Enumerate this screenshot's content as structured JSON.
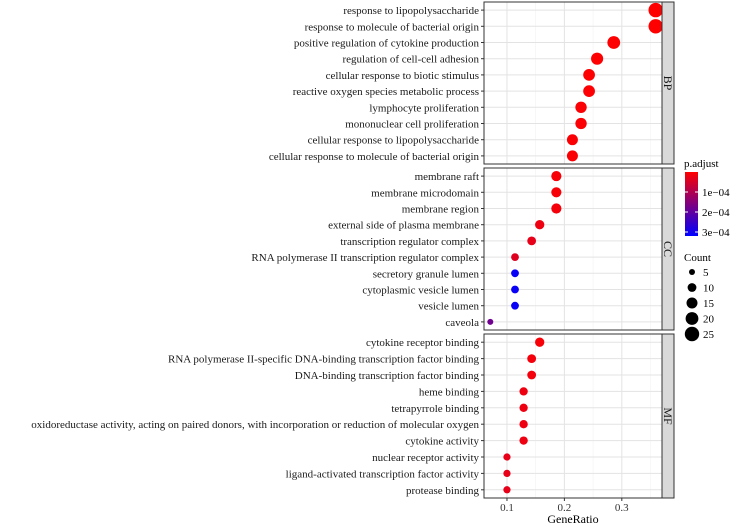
{
  "chart_data": {
    "type": "scatter",
    "xlabel": "GeneRatio",
    "xlim": [
      0.06,
      0.37
    ],
    "xticks": [
      0.1,
      0.2,
      0.3
    ],
    "xtick_labels": [
      "0.1",
      "0.2",
      "0.3"
    ],
    "color_metric": "p.adjust",
    "size_metric": "Count",
    "color_range": [
      1e-08,
      0.00032
    ],
    "color_low": "#ff0000",
    "color_high": "#0000ff",
    "color_ticks": [
      0.0001,
      0.0002,
      0.0003
    ],
    "color_tick_labels": [
      "1e−04",
      "2e−04",
      "3e−04"
    ],
    "size_ticks": [
      5,
      10,
      15,
      20,
      25
    ],
    "size_tick_labels": [
      "5",
      "10",
      "15",
      "20",
      "25"
    ],
    "panels": [
      {
        "name": "BP",
        "terms": [
          {
            "label": "response to lipopolysaccharide",
            "gene_ratio": 0.359,
            "count": 25,
            "p_adjust": 1e-07
          },
          {
            "label": "response to molecule of bacterial origin",
            "gene_ratio": 0.359,
            "count": 25,
            "p_adjust": 1e-07
          },
          {
            "label": "positive regulation of cytokine production",
            "gene_ratio": 0.286,
            "count": 20,
            "p_adjust": 2e-06
          },
          {
            "label": "regulation of cell-cell adhesion",
            "gene_ratio": 0.257,
            "count": 18,
            "p_adjust": 3e-06
          },
          {
            "label": "cellular response to biotic stimulus",
            "gene_ratio": 0.243,
            "count": 17,
            "p_adjust": 3e-06
          },
          {
            "label": "reactive oxygen species metabolic process",
            "gene_ratio": 0.243,
            "count": 17,
            "p_adjust": 4e-06
          },
          {
            "label": "lymphocyte proliferation",
            "gene_ratio": 0.229,
            "count": 16,
            "p_adjust": 5e-06
          },
          {
            "label": "mononuclear cell proliferation",
            "gene_ratio": 0.229,
            "count": 16,
            "p_adjust": 5e-06
          },
          {
            "label": "cellular response to lipopolysaccharide",
            "gene_ratio": 0.214,
            "count": 15,
            "p_adjust": 6e-06
          },
          {
            "label": "cellular response to molecule of bacterial origin",
            "gene_ratio": 0.214,
            "count": 15,
            "p_adjust": 6e-06
          }
        ]
      },
      {
        "name": "CC",
        "terms": [
          {
            "label": "membrane raft",
            "gene_ratio": 0.186,
            "count": 13,
            "p_adjust": 1e-05
          },
          {
            "label": "membrane microdomain",
            "gene_ratio": 0.186,
            "count": 13,
            "p_adjust": 1e-05
          },
          {
            "label": "membrane region",
            "gene_ratio": 0.186,
            "count": 13,
            "p_adjust": 1.2e-05
          },
          {
            "label": "external side of plasma membrane",
            "gene_ratio": 0.157,
            "count": 11,
            "p_adjust": 2e-05
          },
          {
            "label": "transcription regulator complex",
            "gene_ratio": 0.143,
            "count": 10,
            "p_adjust": 3e-05
          },
          {
            "label": "RNA polymerase II transcription regulator complex",
            "gene_ratio": 0.114,
            "count": 8,
            "p_adjust": 4e-05
          },
          {
            "label": "secretory granule lumen",
            "gene_ratio": 0.114,
            "count": 8,
            "p_adjust": 0.00031
          },
          {
            "label": "cytoplasmic vesicle lumen",
            "gene_ratio": 0.114,
            "count": 8,
            "p_adjust": 0.00031
          },
          {
            "label": "vesicle lumen",
            "gene_ratio": 0.114,
            "count": 8,
            "p_adjust": 0.00031
          },
          {
            "label": "caveola",
            "gene_ratio": 0.071,
            "count": 5,
            "p_adjust": 0.00018
          }
        ]
      },
      {
        "name": "MF",
        "terms": [
          {
            "label": "cytokine receptor binding",
            "gene_ratio": 0.157,
            "count": 11,
            "p_adjust": 1e-05
          },
          {
            "label": "RNA polymerase II-specific DNA-binding transcription factor binding",
            "gene_ratio": 0.143,
            "count": 10,
            "p_adjust": 1.2e-05
          },
          {
            "label": "DNA-binding transcription factor binding",
            "gene_ratio": 0.143,
            "count": 10,
            "p_adjust": 1.5e-05
          },
          {
            "label": "heme binding",
            "gene_ratio": 0.129,
            "count": 9,
            "p_adjust": 2e-05
          },
          {
            "label": "tetrapyrrole binding",
            "gene_ratio": 0.129,
            "count": 9,
            "p_adjust": 2e-05
          },
          {
            "label": "oxidoreductase activity, acting on paired donors, with incorporation or reduction of molecular oxygen",
            "gene_ratio": 0.129,
            "count": 9,
            "p_adjust": 2e-05
          },
          {
            "label": "cytokine activity",
            "gene_ratio": 0.129,
            "count": 9,
            "p_adjust": 2e-05
          },
          {
            "label": "nuclear receptor activity",
            "gene_ratio": 0.1,
            "count": 7,
            "p_adjust": 3e-05
          },
          {
            "label": "ligand-activated transcription factor activity",
            "gene_ratio": 0.1,
            "count": 7,
            "p_adjust": 3e-05
          },
          {
            "label": "protease binding",
            "gene_ratio": 0.1,
            "count": 7,
            "p_adjust": 3e-05
          }
        ]
      }
    ]
  }
}
